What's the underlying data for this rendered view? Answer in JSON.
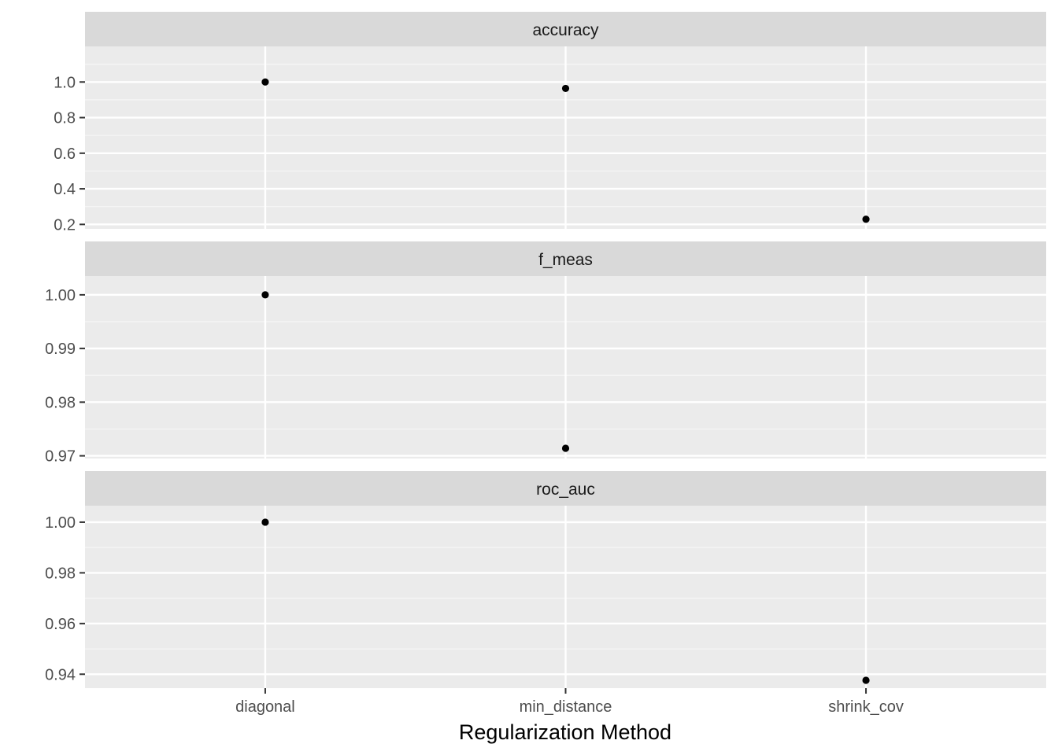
{
  "chart_data": {
    "type": "scatter",
    "xlabel": "Regularization Method",
    "ylabel": "",
    "categories": [
      "diagonal",
      "min_distance",
      "shrink_cov"
    ],
    "grid": true,
    "facet_layout": "vertical stacked panels, free y scales",
    "panels": [
      {
        "name": "accuracy",
        "ylim": [
          0.175,
          1.2
        ],
        "yticks": [
          0.2,
          0.4,
          0.6,
          0.8,
          1.0
        ],
        "ytick_labels": [
          "0.2",
          "0.4",
          "0.6",
          "0.8",
          "1.0"
        ],
        "points": [
          {
            "x": "diagonal",
            "y": 1.0
          },
          {
            "x": "min_distance",
            "y": 0.964
          },
          {
            "x": "shrink_cov",
            "y": 0.229
          }
        ]
      },
      {
        "name": "f_meas",
        "ylim": [
          0.9695,
          1.0035
        ],
        "yticks": [
          0.97,
          0.98,
          0.99,
          1.0
        ],
        "ytick_labels": [
          "0.97",
          "0.98",
          "0.99",
          "1.00"
        ],
        "points": [
          {
            "x": "diagonal",
            "y": 1.0
          },
          {
            "x": "min_distance",
            "y": 0.9714
          }
        ]
      },
      {
        "name": "roc_auc",
        "ylim": [
          0.9345,
          1.0065
        ],
        "yticks": [
          0.94,
          0.96,
          0.98,
          1.0
        ],
        "ytick_labels": [
          "0.94",
          "0.96",
          "0.98",
          "1.00"
        ],
        "points": [
          {
            "x": "diagonal",
            "y": 1.0
          },
          {
            "x": "shrink_cov",
            "y": 0.9376
          }
        ]
      }
    ]
  }
}
